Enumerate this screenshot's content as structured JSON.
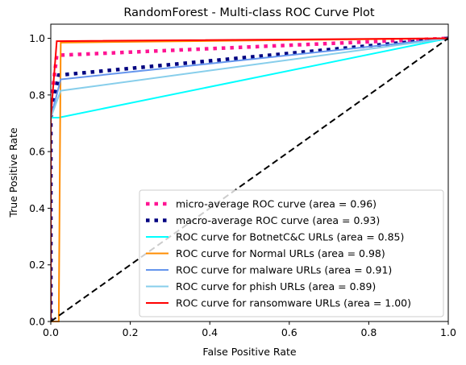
{
  "chart_data": {
    "type": "line",
    "title": "RandomForest - Multi-class ROC Curve Plot",
    "xlabel": "False Positive Rate",
    "ylabel": "True Positive Rate",
    "xlim": [
      0.0,
      1.0
    ],
    "ylim": [
      0.0,
      1.05
    ],
    "xticks": [
      0.0,
      0.2,
      0.4,
      0.6,
      0.8,
      1.0
    ],
    "xtick_labels": [
      "0.0",
      "0.2",
      "0.4",
      "0.6",
      "0.8",
      "1.0"
    ],
    "yticks": [
      0.0,
      0.2,
      0.4,
      0.6,
      0.8,
      1.0
    ],
    "ytick_labels": [
      "0.0",
      "0.2",
      "0.4",
      "0.6",
      "0.8",
      "1.0"
    ],
    "grid": false,
    "legend_position": "bottom-right",
    "series": [
      {
        "name": "micro-average ROC curve (area = 0.96)",
        "color": "#ff1493",
        "style": "dotted",
        "x": [
          0.0,
          0.0,
          0.015,
          1.0
        ],
        "y": [
          0.0,
          0.76,
          0.94,
          1.0
        ]
      },
      {
        "name": "macro-average ROC curve (area = 0.93)",
        "color": "#000080",
        "style": "dotted",
        "x": [
          0.0,
          0.0,
          0.02,
          1.0
        ],
        "y": [
          0.0,
          0.72,
          0.87,
          1.0
        ]
      },
      {
        "name": "ROC curve for BotnetC&C URLs (area = 0.85)",
        "color": "#00ffff",
        "style": "solid",
        "x": [
          0.0,
          0.0,
          0.02,
          1.0
        ],
        "y": [
          0.0,
          0.72,
          0.72,
          1.0
        ]
      },
      {
        "name": "ROC curve for Normal URLs (area = 0.98)",
        "color": "#ff8c00",
        "style": "solid",
        "x": [
          0.0,
          0.02,
          0.025,
          1.0
        ],
        "y": [
          0.0,
          0.0,
          0.985,
          1.0
        ]
      },
      {
        "name": "ROC curve for malware URLs (area = 0.91)",
        "color": "#6495ed",
        "style": "solid",
        "x": [
          0.0,
          0.0,
          0.025,
          1.0
        ],
        "y": [
          0.0,
          0.72,
          0.855,
          1.0
        ]
      },
      {
        "name": "ROC curve for phish URLs (area = 0.89)",
        "color": "#87ceeb",
        "style": "solid",
        "x": [
          0.0,
          0.0,
          0.025,
          1.0
        ],
        "y": [
          0.0,
          0.72,
          0.815,
          1.0
        ]
      },
      {
        "name": "ROC curve for ransomware URLs (area = 1.00)",
        "color": "#ff0000",
        "style": "solid",
        "x": [
          0.0,
          0.0,
          0.015,
          1.0
        ],
        "y": [
          0.0,
          0.72,
          0.99,
          1.0
        ]
      }
    ],
    "reference_line": {
      "color": "#000000",
      "style": "dashed",
      "x": [
        0.0,
        1.0
      ],
      "y": [
        0.0,
        1.0
      ]
    }
  }
}
